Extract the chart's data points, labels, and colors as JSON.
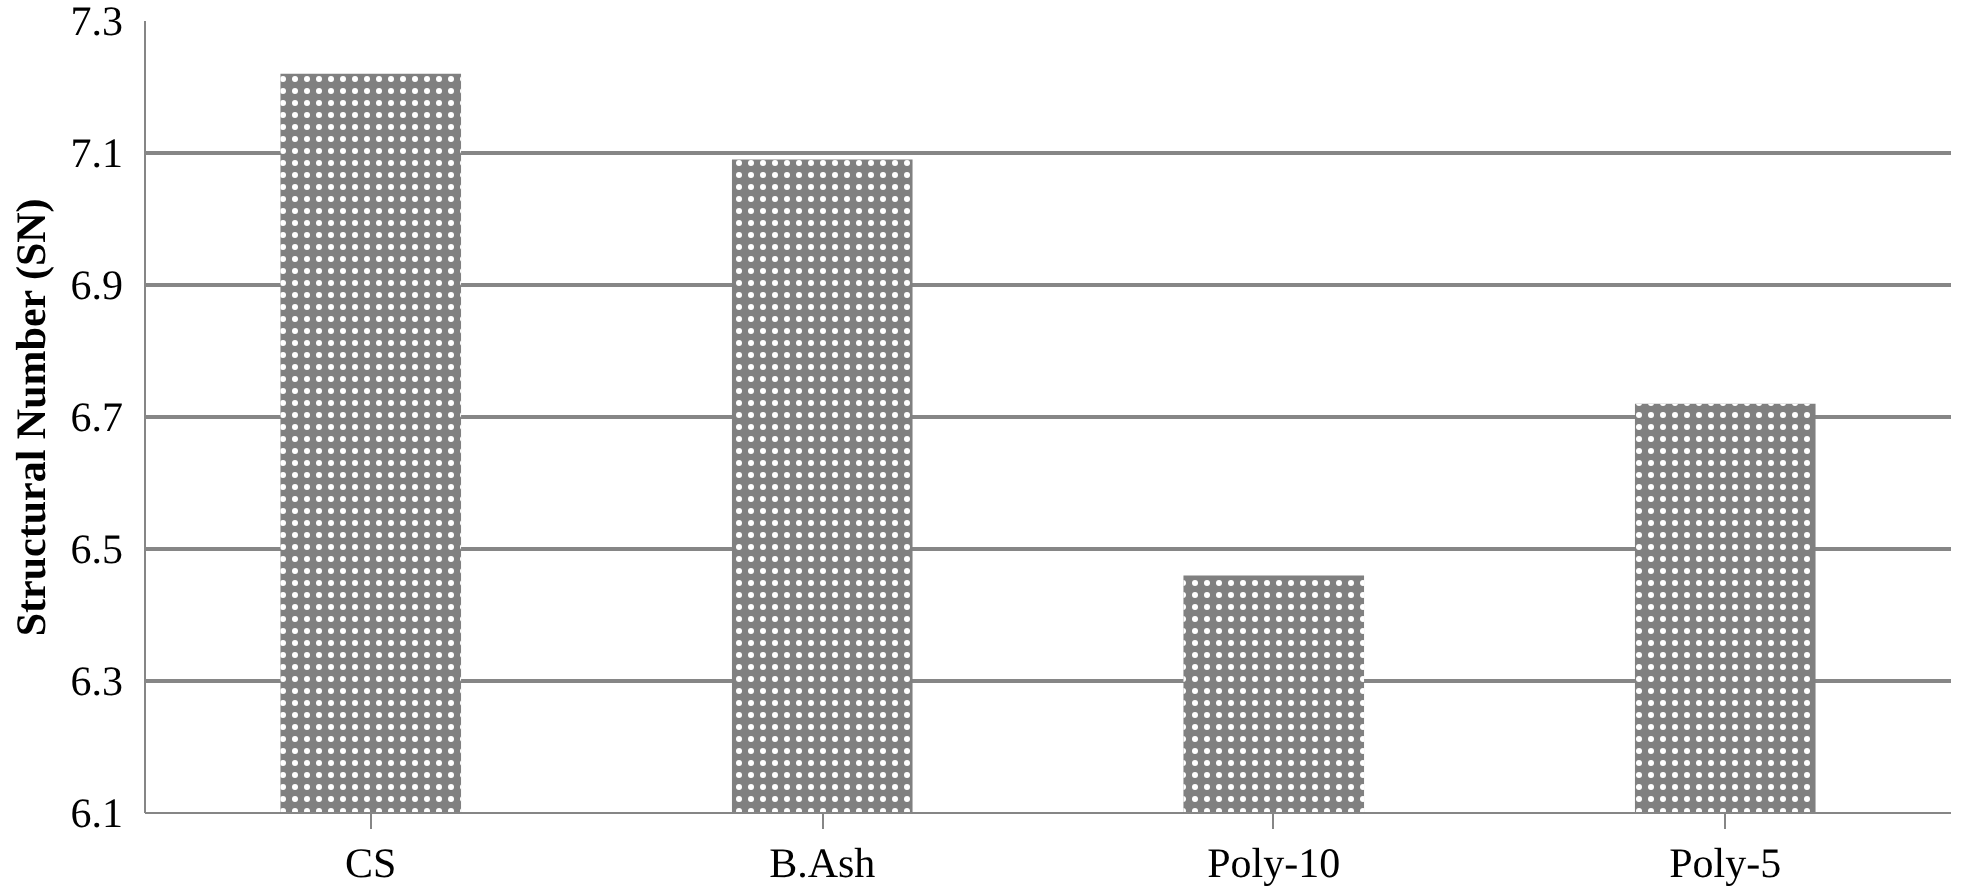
{
  "chart_data": {
    "type": "bar",
    "ylabel": "Structural Number (SN)",
    "categories": [
      "CS",
      "B.Ash",
      "Poly-10",
      "Poly-5"
    ],
    "values": [
      7.22,
      7.09,
      6.46,
      6.72
    ],
    "color": "#808080",
    "ylim": [
      6.1,
      7.3
    ],
    "yticks": [
      6.1,
      6.3,
      6.5,
      6.7,
      6.9,
      7.1,
      7.3
    ],
    "grid": "y"
  }
}
